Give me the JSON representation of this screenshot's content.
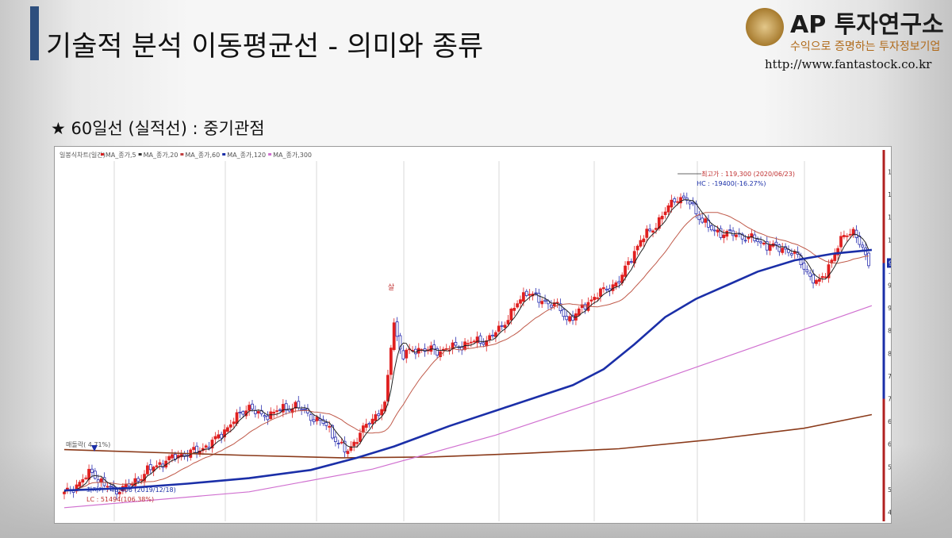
{
  "header": {
    "title": "기술적 분석 이동평균선 - 의미와 종류",
    "logo_main": "AP 투자연구소",
    "logo_sub": "수익으로 증명하는 투자정보기업",
    "logo_url": "http://www.fantastock.co.kr"
  },
  "subtitle": "★ 60일선 (실적선) : 중기관점",
  "chart_data": {
    "type": "candlestick",
    "legend": [
      "일봉식차트(일간)",
      "MA_종가,5",
      "MA_종가,20",
      "MA_종가,60",
      "MA_종가,120",
      "MA_종가,300"
    ],
    "legend_colors": [
      "#333333",
      "#d92020",
      "#333333",
      "#c04040",
      "#1b2fa8",
      "#d070d0",
      "#8a3a1a"
    ],
    "ylim": [
      43000,
      122000
    ],
    "yticks": [
      45000,
      50000,
      55000,
      60000,
      65000,
      70000,
      75000,
      80000,
      85000,
      90000,
      95000,
      100000,
      105000,
      110000,
      115000,
      120000
    ],
    "n_days": 205,
    "current_price": "99,900",
    "current_change": "-0.30%",
    "annotations": {
      "high": "최고가 : 119,300 (2020/06/23)",
      "hc": "HC : -19400(-16.27%)",
      "low": "최저가 : 48,406 (2019/12/18)",
      "lc": "LC : 51494(106.38%)",
      "breakout": "매돌락( 4.71%)",
      "mark": "살"
    },
    "ma60": [
      [
        0,
        49800
      ],
      [
        20,
        50300
      ],
      [
        40,
        51300
      ],
      [
        60,
        52500
      ],
      [
        80,
        54300
      ],
      [
        95,
        57000
      ],
      [
        107,
        59500
      ],
      [
        125,
        64000
      ],
      [
        145,
        68500
      ],
      [
        165,
        73000
      ],
      [
        175,
        76500
      ],
      [
        185,
        82000
      ],
      [
        195,
        88000
      ],
      [
        205,
        92000
      ],
      [
        215,
        95000
      ],
      [
        225,
        98000
      ],
      [
        237,
        100500
      ],
      [
        250,
        102000
      ],
      [
        262,
        102800
      ]
    ],
    "ma300": [
      [
        0,
        58800
      ],
      [
        60,
        57500
      ],
      [
        90,
        57000
      ],
      [
        120,
        57200
      ],
      [
        150,
        58000
      ],
      [
        180,
        59000
      ],
      [
        210,
        61000
      ],
      [
        240,
        63500
      ],
      [
        262,
        66500
      ]
    ],
    "ma120": [
      [
        0,
        46000
      ],
      [
        60,
        49500
      ],
      [
        100,
        54500
      ],
      [
        140,
        62000
      ],
      [
        180,
        71000
      ],
      [
        220,
        80500
      ],
      [
        262,
        90500
      ]
    ],
    "colors": {
      "up": "#e02020",
      "down": "#2a2fb0",
      "ma5": "#222222",
      "ma20": "#c05a4a",
      "ma60": "#1b2fa8",
      "ma120": "#d070d0",
      "ma300": "#8a3a1a",
      "accent": "#2e4f7e"
    }
  }
}
